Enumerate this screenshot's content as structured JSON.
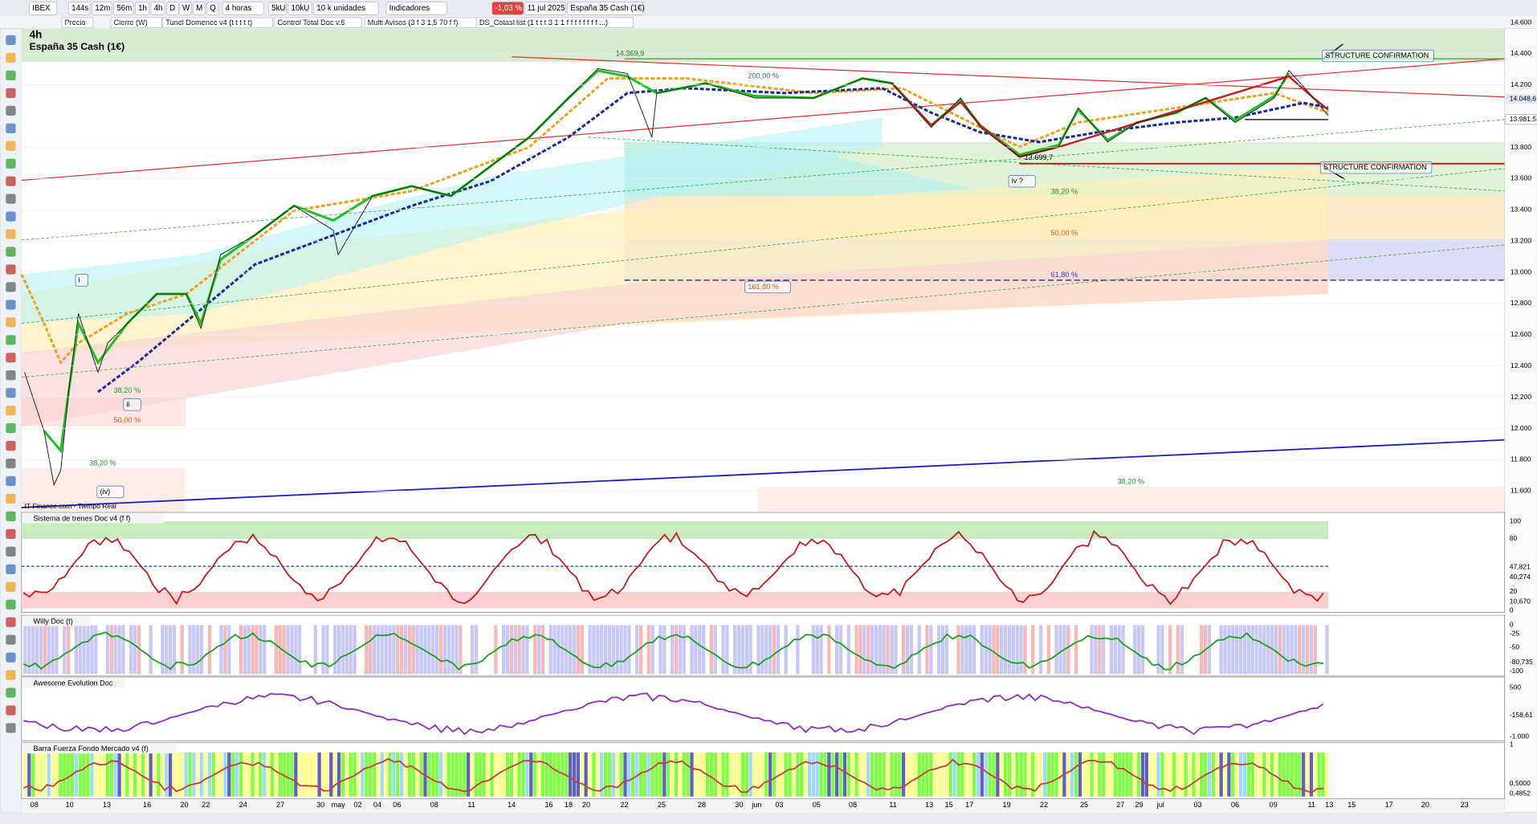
{
  "toolbar": {
    "items": [
      "IBEX",
      "144s",
      "12m",
      "56m",
      "1h",
      "4h",
      "D",
      "W",
      "M",
      "Q",
      "4 horas",
      "5kU",
      "10kU",
      "10 k unidades",
      "Indicadores",
      "-1,03 %",
      "11 jul 2025",
      "España 35 Cash (1€)"
    ],
    "studies": [
      "Precio",
      "Cierre (W)",
      "Tunel Domenec v4 (t t t t t)",
      "Control Total Doc v.6",
      "Multi Avisos (3 f 3 1,5 70 f f)",
      "DS_CotasHist (1 t t t 3 1 1 f f f f f f f f ...)"
    ]
  },
  "chart": {
    "timeframe": "4h",
    "instrument": "España 35 Cash (1€)",
    "source": "IT-Finance.com - Tiempo Real",
    "price_axis": [
      "14.600",
      "14.400",
      "14.200",
      "13.800",
      "13.600",
      "13.400",
      "13.200",
      "13.000",
      "12.800",
      "12.600",
      "12.400",
      "12.200",
      "12.000",
      "11.800",
      "11.600"
    ],
    "last_price": "14.048,6",
    "second_price": "13.981,5",
    "annotations": [
      "14.369,9",
      "200,00 %",
      "STRUCTURE CONFIRMATION",
      "STRUCTURE CONFIRMATION",
      "iv ?",
      "13.699,7",
      "38,20 %",
      "50,00 %",
      "61,80 %",
      "161,80 %",
      "i",
      "ii",
      "38,20 %",
      "50,00 %",
      "38,20 %",
      "(iv)",
      "38,20 %"
    ]
  },
  "panels": [
    {
      "name": "Sistema de trenes Doc v4 (f f)",
      "axis": [
        "100",
        "80",
        "47,821",
        "40,274",
        "20",
        "10,670",
        "0"
      ]
    },
    {
      "name": "Willy Doc (t)",
      "axis": [
        "0",
        "-25",
        "-50",
        "-80,735",
        "-100"
      ]
    },
    {
      "name": "Awesome Evolution Doc",
      "axis": [
        "500",
        "-158,61",
        "-1.000"
      ]
    },
    {
      "name": "Barra Fuerza Fondo Mercado v4 (f)",
      "axis": [
        "1",
        "0,5000",
        "0,4852"
      ]
    }
  ],
  "dates": [
    "08",
    "10",
    "13",
    "16",
    "20",
    "22",
    "24",
    "27",
    "30",
    "may",
    "02",
    "04",
    "06",
    "08",
    "11",
    "14",
    "16",
    "18",
    "20",
    "22",
    "25",
    "28",
    "30",
    "jun",
    "03",
    "05",
    "08",
    "11",
    "13",
    "15",
    "17",
    "19",
    "22",
    "25",
    "27",
    "29",
    "jul",
    "03",
    "06",
    "09",
    "11",
    "13",
    "15",
    "17",
    "20",
    "23"
  ]
}
